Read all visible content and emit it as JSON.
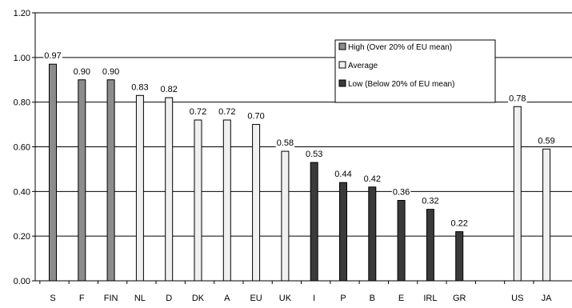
{
  "chart_data": {
    "type": "bar",
    "title": "",
    "xlabel": "",
    "ylabel": "",
    "ylim": [
      0,
      1.2
    ],
    "yticks": [
      "0.00",
      "0.20",
      "0.40",
      "0.60",
      "0.80",
      "1.00",
      "1.20"
    ],
    "grid": true,
    "legend_position": "top-right",
    "series": [
      {
        "name": "High (Over 20% of EU mean)",
        "color": "#8c8c8c"
      },
      {
        "name": "Average",
        "color": "#f0f0f0"
      },
      {
        "name": "Low (Below 20% of EU mean)",
        "color": "#3a3a3a"
      }
    ],
    "bars": [
      {
        "category": "S",
        "value": 0.97,
        "label": "0.97",
        "series": 0
      },
      {
        "category": "F",
        "value": 0.9,
        "label": "0.90",
        "series": 0
      },
      {
        "category": "FIN",
        "value": 0.9,
        "label": "0.90",
        "series": 0
      },
      {
        "category": "NL",
        "value": 0.83,
        "label": "0.83",
        "series": 1
      },
      {
        "category": "D",
        "value": 0.82,
        "label": "0.82",
        "series": 1
      },
      {
        "category": "DK",
        "value": 0.72,
        "label": "0.72",
        "series": 1
      },
      {
        "category": "A",
        "value": 0.72,
        "label": "0.72",
        "series": 1
      },
      {
        "category": "EU",
        "value": 0.7,
        "label": "0.70",
        "series": 1
      },
      {
        "category": "UK",
        "value": 0.58,
        "label": "0.58",
        "series": 1
      },
      {
        "category": "I",
        "value": 0.53,
        "label": "0.53",
        "series": 2
      },
      {
        "category": "P",
        "value": 0.44,
        "label": "0.44",
        "series": 2
      },
      {
        "category": "B",
        "value": 0.42,
        "label": "0.42",
        "series": 2
      },
      {
        "category": "E",
        "value": 0.36,
        "label": "0.36",
        "series": 2
      },
      {
        "category": "IRL",
        "value": 0.32,
        "label": "0.32",
        "series": 2
      },
      {
        "category": "GR",
        "value": 0.22,
        "label": "0.22",
        "series": 2
      },
      {
        "category": "",
        "value": null,
        "label": "",
        "series": null
      },
      {
        "category": "US",
        "value": 0.78,
        "label": "0.78",
        "series": 1
      },
      {
        "category": "JA",
        "value": 0.59,
        "label": "0.59",
        "series": 1
      }
    ]
  }
}
